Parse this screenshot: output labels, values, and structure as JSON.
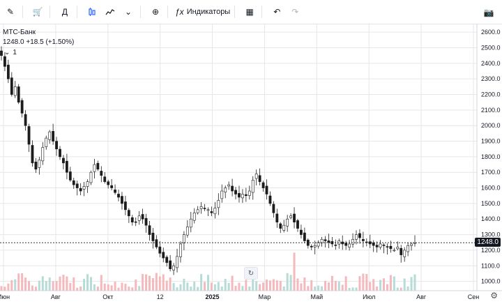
{
  "toolbar": {
    "pencil_icon": "pencil-icon",
    "cart_icon": "cart-icon",
    "interval": "Д",
    "indicators_label": "Индикаторы"
  },
  "legend": {
    "symbol": "МТС-Банк",
    "quote": "1248.0 +18.5 (+1.50%)",
    "collapsed_count": "1"
  },
  "price_tag": "1248.0",
  "colors": {
    "up": "#1c1c1c",
    "down": "#1c1c1c",
    "vol_up": "#b7dbd6",
    "vol_down": "#f4b9bd",
    "grid": "#e6e6e6"
  },
  "chart_data": {
    "type": "candlestick",
    "x_ticks": [
      "Июн",
      "Авг",
      "Окт",
      "12",
      "2025",
      "Мар",
      "Май",
      "Июл",
      "Авг",
      "Сен"
    ],
    "y_ticks": [
      2600,
      2500,
      2400,
      2300,
      2200,
      2100,
      2000,
      1900,
      1800,
      1700,
      1600,
      1500,
      1400,
      1300,
      1200,
      1100,
      1000
    ],
    "ylim": [
      940,
      2650
    ],
    "last_price": 1248.0,
    "series": [
      {
        "name": "МТС-Банк",
        "close": [
          2450,
          2380,
          2300,
          2200,
          2250,
          2150,
          2080,
          2000,
          1880,
          1760,
          1720,
          1780,
          1860,
          1920,
          1960,
          1900,
          1850,
          1800,
          1760,
          1700,
          1650,
          1620,
          1600,
          1580,
          1610,
          1640,
          1700,
          1750,
          1720,
          1680,
          1640,
          1620,
          1600,
          1570,
          1540,
          1500,
          1460,
          1420,
          1380,
          1380,
          1420,
          1400,
          1360,
          1300,
          1260,
          1220,
          1180,
          1150,
          1120,
          1080,
          1100,
          1160,
          1240,
          1300,
          1350,
          1400,
          1440,
          1460,
          1480,
          1470,
          1460,
          1440,
          1470,
          1520,
          1580,
          1600,
          1620,
          1580,
          1560,
          1540,
          1560,
          1550,
          1580,
          1650,
          1690,
          1640,
          1600,
          1560,
          1500,
          1440,
          1380,
          1340,
          1360,
          1400,
          1420,
          1380,
          1340,
          1300,
          1260,
          1230,
          1220,
          1230,
          1250,
          1270,
          1260,
          1250,
          1240,
          1230,
          1260,
          1240,
          1230,
          1240,
          1270,
          1300,
          1280,
          1260,
          1250,
          1240,
          1230,
          1220,
          1240,
          1230,
          1220,
          1210,
          1200,
          1220,
          1170,
          1200,
          1230,
          1240,
          1248
        ]
      }
    ]
  }
}
